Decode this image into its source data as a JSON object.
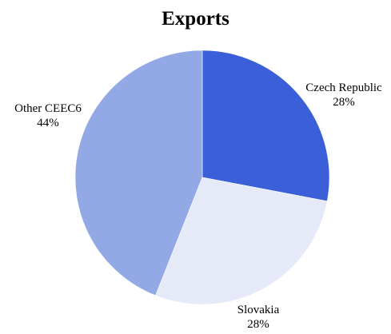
{
  "chart_data": {
    "type": "pie",
    "title": "Exports",
    "slices": [
      {
        "label": "Czech Republic",
        "value": 28,
        "value_label": "28%",
        "color": "#3a5fd8"
      },
      {
        "label": "Slovakia",
        "value": 28,
        "value_label": "28%",
        "color": "#e6eaf8"
      },
      {
        "label": "Other CEEC6",
        "value": 44,
        "value_label": "44%",
        "color": "#93a9e6"
      }
    ],
    "start": "12 o'clock",
    "direction": "clockwise",
    "legend": "none",
    "labels": "outside slices"
  }
}
